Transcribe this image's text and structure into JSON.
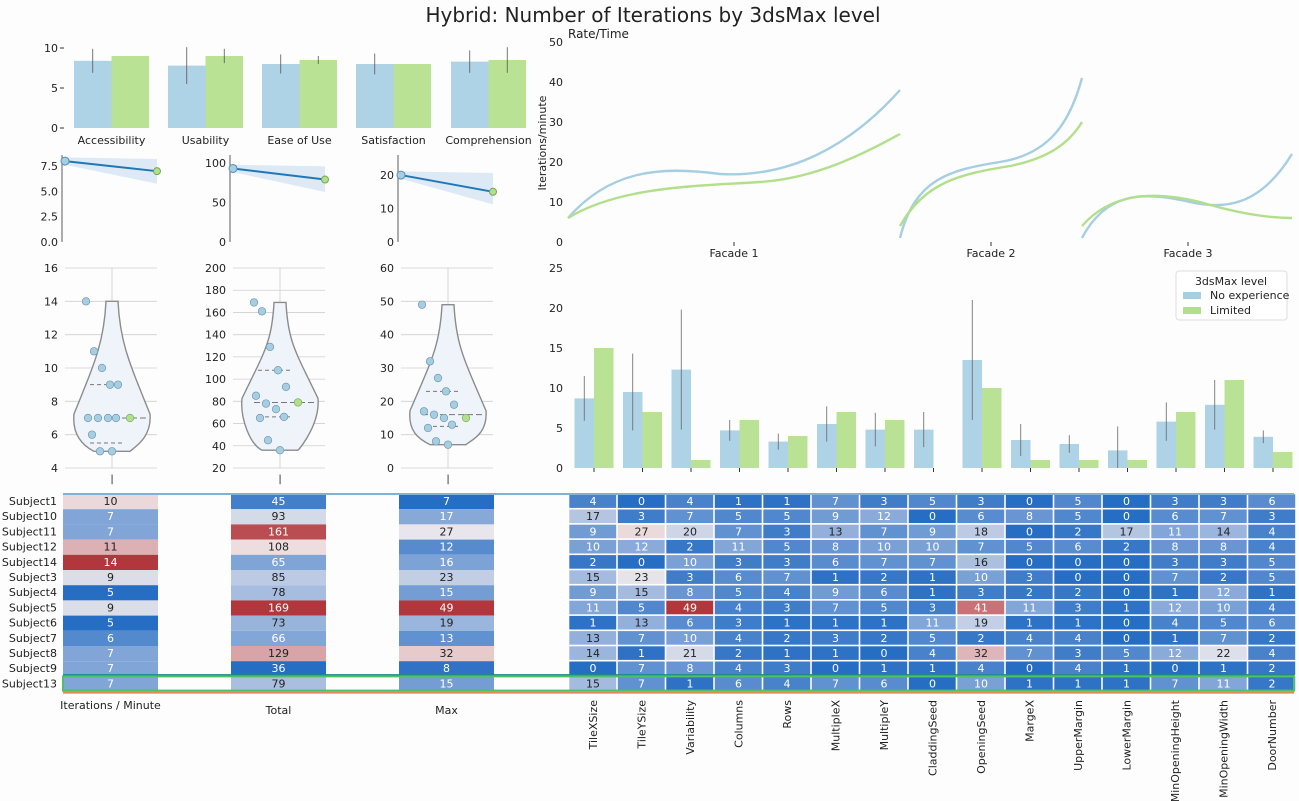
{
  "title": "Hybrid: Number of Iterations by 3dsMax level",
  "colors": {
    "no_experience": "#a6cee3",
    "limited": "#b2df8a",
    "reg_line": "#1f78b4",
    "band": "#d4e4f2"
  },
  "legend": {
    "title": "3dsMax level",
    "entries": [
      "No experience",
      "Limited"
    ]
  },
  "chart_data": [
    {
      "name": "ratings",
      "type": "bar",
      "categories": [
        "Accessibility",
        "Usability",
        "Ease of Use",
        "Satisfaction",
        "Comprehension"
      ],
      "series": [
        {
          "name": "No experience",
          "values": [
            8.4,
            7.8,
            8.0,
            8.0,
            8.3
          ],
          "err": [
            1.5,
            2.3,
            1.2,
            1.3,
            1.4
          ]
        },
        {
          "name": "Limited",
          "values": [
            9.0,
            9.0,
            8.5,
            8.0,
            8.5
          ],
          "err": [
            0.0,
            0.9,
            0.5,
            0.0,
            1.6
          ]
        }
      ],
      "yticks": [
        "0",
        "5",
        "10"
      ],
      "ylim": [
        0,
        10
      ]
    },
    {
      "name": "regression",
      "type": "line",
      "panels": [
        {
          "yticks": [
            "0.0",
            "2.5",
            "5.0",
            "7.5"
          ],
          "ylim": [
            0,
            8.6
          ],
          "start": 8.0,
          "end": 7.0
        },
        {
          "yticks": [
            "0",
            "50",
            "100"
          ],
          "ylim": [
            0,
            110
          ],
          "start": 93,
          "end": 79
        },
        {
          "yticks": [
            "0",
            "10",
            "20"
          ],
          "ylim": [
            0,
            26
          ],
          "start": 20,
          "end": 15
        }
      ]
    },
    {
      "name": "violins",
      "type": "scatter",
      "panels": [
        {
          "yticks": [
            "4",
            "6",
            "8",
            "10",
            "12",
            "14",
            "16"
          ],
          "ylim": [
            4,
            16
          ],
          "points": [
            14,
            11,
            10,
            9,
            9,
            7,
            7,
            7,
            7,
            6,
            5,
            5
          ],
          "limited": [
            7
          ],
          "median": 7,
          "q1": 5.5,
          "q3": 9
        },
        {
          "yticks": [
            "20",
            "40",
            "60",
            "80",
            "100",
            "120",
            "140",
            "160",
            "180",
            "200"
          ],
          "ylim": [
            20,
            200
          ],
          "points": [
            169,
            161,
            129,
            108,
            93,
            85,
            78,
            73,
            66,
            65,
            45,
            36
          ],
          "limited": [
            79
          ],
          "median": 79,
          "q1": 66,
          "q3": 108
        },
        {
          "yticks": [
            "0",
            "10",
            "20",
            "30",
            "40",
            "50",
            "60"
          ],
          "ylim": [
            0,
            60
          ],
          "points": [
            49,
            32,
            27,
            23,
            19,
            17,
            16,
            15,
            13,
            12,
            8,
            7
          ],
          "limited": [
            15
          ],
          "median": 16,
          "q1": 12.5,
          "q3": 23
        }
      ]
    },
    {
      "name": "rate-time",
      "type": "line",
      "ylabel": "Iterations/minute",
      "title_left": "Rate/Time",
      "yticks": [
        "0",
        "10",
        "20",
        "30",
        "40",
        "50"
      ],
      "ylim": [
        0,
        50
      ],
      "facades": [
        "Facade 1",
        "Facade 2",
        "Facade 3"
      ]
    },
    {
      "name": "parameters",
      "type": "bar",
      "categories": [
        "TileXSize",
        "TileYSize",
        "Variability",
        "Columns",
        "Rows",
        "MultipleX",
        "MultipleY",
        "CladdingSeed",
        "OpeningSeed",
        "MargeX",
        "UpperMargin",
        "LowerMargin",
        "MinOpeningHeight",
        "MinOpeningWidth",
        "DoorNumber"
      ],
      "series": [
        {
          "name": "No experience",
          "values": [
            8.7,
            9.5,
            12.3,
            4.7,
            3.3,
            5.5,
            4.8,
            4.8,
            13.5,
            3.5,
            3.0,
            2.2,
            5.8,
            7.9,
            3.9
          ],
          "err": [
            2.8,
            4.8,
            7.5,
            1.3,
            1.0,
            2.2,
            2.1,
            2.2,
            7.5,
            2.0,
            1.1,
            3.0,
            2.4,
            3.1,
            0.8
          ]
        },
        {
          "name": "Limited",
          "values": [
            15,
            7,
            1,
            6,
            4,
            7,
            6,
            0,
            10,
            1,
            1,
            1,
            7,
            11,
            2
          ],
          "err": [
            0,
            0,
            0,
            0,
            0,
            0,
            0,
            0,
            0,
            0,
            0,
            0,
            0,
            0,
            0
          ]
        }
      ],
      "yticks": [
        "0",
        "5",
        "10",
        "15",
        "20",
        "25"
      ],
      "ylim": [
        0,
        25
      ]
    },
    {
      "name": "heatmap",
      "type": "heatmap",
      "subjects": [
        "Subject1",
        "Subject10",
        "Subject11",
        "Subject12",
        "Subject14",
        "Subject3",
        "Subject4",
        "Subject5",
        "Subject6",
        "Subject7",
        "Subject8",
        "Subject9",
        "Subject13"
      ],
      "summary_columns": [
        "Iterations / Minute",
        "Total",
        "Max"
      ],
      "summary": [
        [
          10,
          45,
          7
        ],
        [
          7,
          93,
          17
        ],
        [
          7,
          161,
          27
        ],
        [
          11,
          108,
          12
        ],
        [
          14,
          65,
          16
        ],
        [
          9,
          85,
          23
        ],
        [
          5,
          78,
          15
        ],
        [
          9,
          169,
          49
        ],
        [
          5,
          73,
          19
        ],
        [
          6,
          66,
          13
        ],
        [
          7,
          129,
          32
        ],
        [
          7,
          36,
          8
        ],
        [
          7,
          79,
          15
        ]
      ],
      "param_rows": [
        [
          4,
          0,
          4,
          1,
          1,
          7,
          3,
          5,
          3,
          0,
          5,
          0,
          3,
          3,
          6
        ],
        [
          17,
          3,
          7,
          5,
          5,
          9,
          12,
          0,
          6,
          8,
          5,
          0,
          6,
          7,
          3
        ],
        [
          9,
          27,
          20,
          7,
          3,
          13,
          7,
          9,
          18,
          0,
          2,
          17,
          11,
          14,
          4
        ],
        [
          10,
          12,
          2,
          11,
          5,
          8,
          10,
          10,
          7,
          5,
          6,
          2,
          8,
          8,
          4
        ],
        [
          2,
          0,
          10,
          3,
          3,
          6,
          7,
          7,
          16,
          0,
          0,
          0,
          3,
          3,
          5
        ],
        [
          15,
          23,
          3,
          6,
          7,
          1,
          2,
          1,
          10,
          3,
          0,
          0,
          7,
          2,
          5
        ],
        [
          9,
          15,
          8,
          5,
          4,
          9,
          6,
          1,
          3,
          2,
          2,
          0,
          1,
          12,
          1
        ],
        [
          11,
          5,
          49,
          4,
          3,
          7,
          5,
          3,
          41,
          11,
          3,
          1,
          12,
          10,
          4
        ],
        [
          1,
          13,
          6,
          3,
          1,
          1,
          1,
          11,
          19,
          1,
          1,
          0,
          4,
          5,
          6
        ],
        [
          13,
          7,
          10,
          4,
          2,
          3,
          2,
          5,
          2,
          4,
          4,
          0,
          1,
          7,
          2
        ],
        [
          14,
          1,
          21,
          2,
          1,
          1,
          0,
          4,
          32,
          7,
          3,
          5,
          12,
          22,
          4
        ],
        [
          0,
          7,
          8,
          4,
          3,
          0,
          1,
          1,
          4,
          0,
          4,
          1,
          0,
          1,
          2
        ],
        [
          15,
          7,
          1,
          6,
          4,
          7,
          6,
          0,
          10,
          1,
          1,
          1,
          7,
          11,
          2
        ]
      ]
    }
  ]
}
